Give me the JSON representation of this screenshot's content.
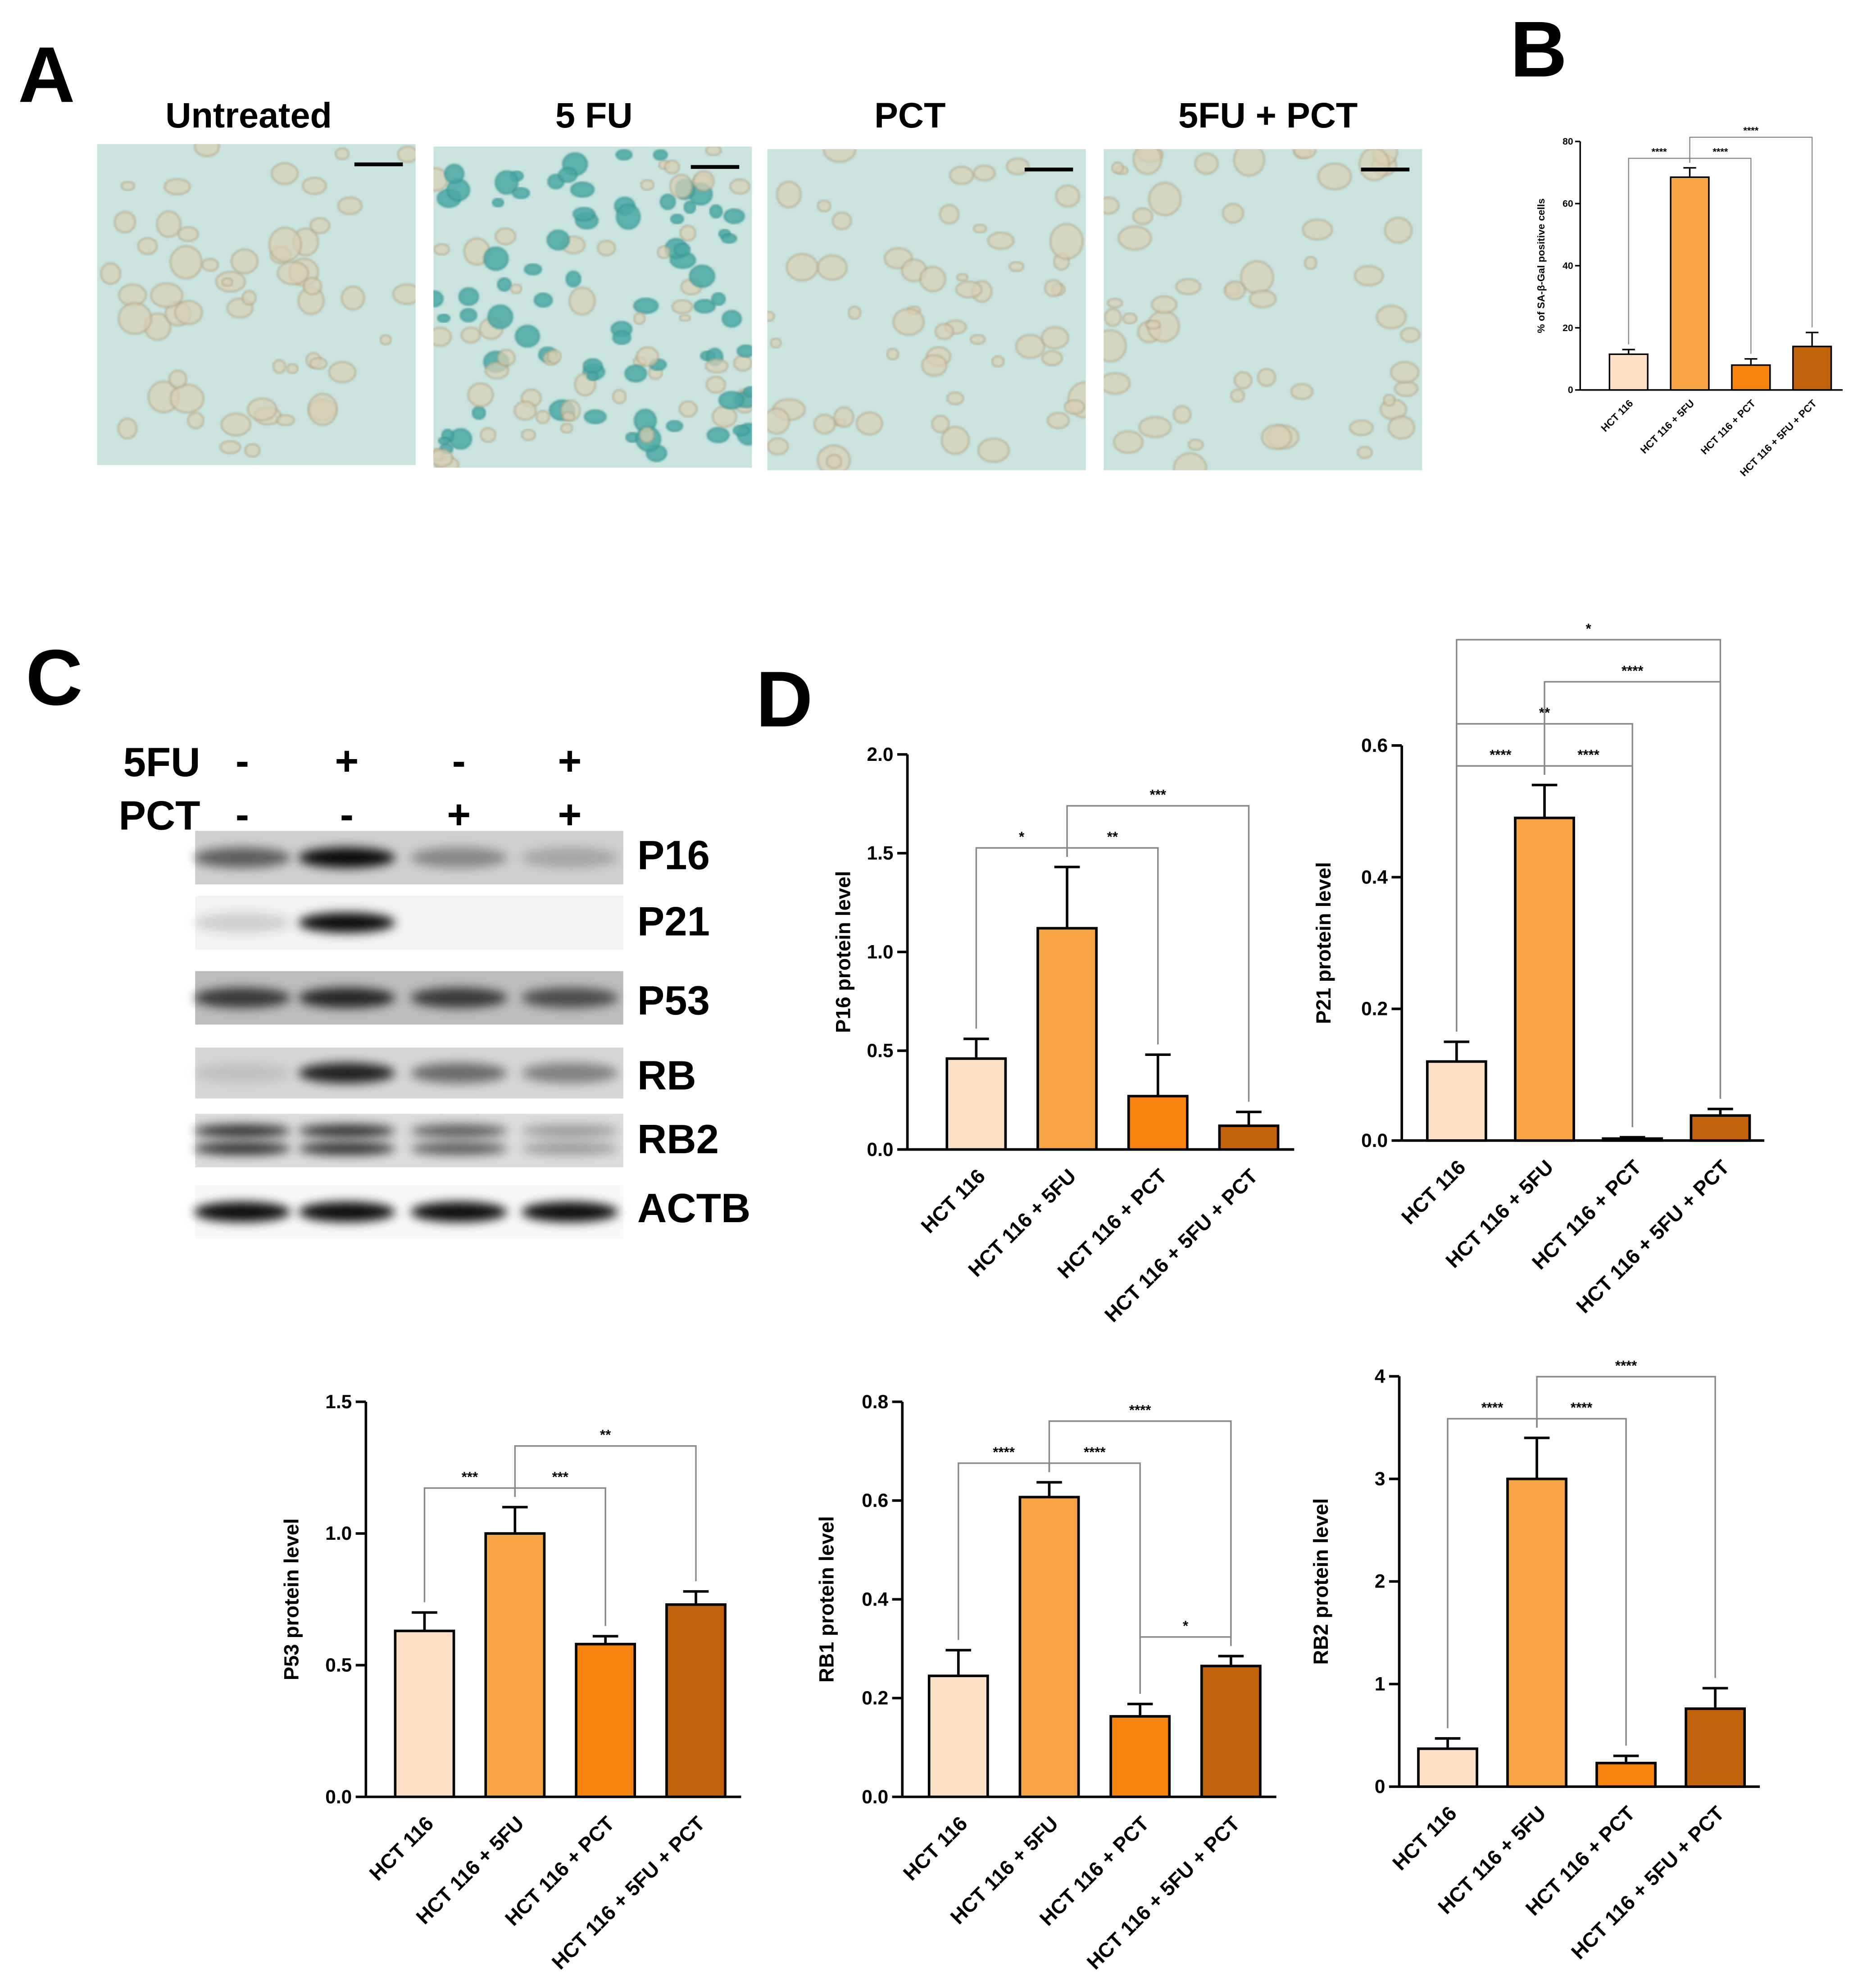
{
  "panel_labels": [
    "A",
    "B",
    "C",
    "D"
  ],
  "micrographs": {
    "titles": [
      "Untreated",
      "5 FU",
      "PCT",
      "5FU + PCT"
    ]
  },
  "blot": {
    "treatments": [
      {
        "name": "5FU",
        "signs": [
          "-",
          "+",
          "-",
          "+"
        ]
      },
      {
        "name": "PCT",
        "signs": [
          "-",
          "-",
          "+",
          "+"
        ]
      }
    ],
    "bands": [
      "P16",
      "P21",
      "P53",
      "RB",
      "RB2",
      "ACTB"
    ]
  },
  "chart_data": [
    {
      "type": "bar",
      "y_label": "% of SA-β-Gal positive cells",
      "categories": [
        "HCT 116",
        "HCT 116 + 5FU",
        "HCT 116 + PCT",
        "HCT 116 + 5FU + PCT"
      ],
      "colors": [
        "#fde0c5",
        "#f9a444",
        "#f7830f",
        "#c2620b"
      ],
      "values": [
        11.5,
        68.5,
        8,
        14
      ],
      "errors": [
        1.5,
        3,
        2,
        4.5
      ],
      "ylim": [
        0,
        80
      ],
      "yticks": [
        0,
        20,
        40,
        60,
        80
      ],
      "significance": [
        {
          "pair": [
            0,
            1
          ],
          "label": "****"
        },
        {
          "pair": [
            1,
            2
          ],
          "label": "****"
        },
        {
          "pair": [
            1,
            3
          ],
          "label": "****"
        }
      ]
    },
    {
      "type": "bar",
      "y_label": "P16 protein level",
      "categories": [
        "HCT 116",
        "HCT 116 + 5FU",
        "HCT 116 + PCT",
        "HCT 116 + 5FU + PCT"
      ],
      "colors": [
        "#fde0c5",
        "#f9a444",
        "#f7830f",
        "#c2620b"
      ],
      "values": [
        0.46,
        1.12,
        0.27,
        0.12
      ],
      "errors": [
        0.1,
        0.31,
        0.21,
        0.07
      ],
      "ylim": [
        0,
        2
      ],
      "yticks": [
        {
          "value": 0,
          "label": "0.0"
        },
        0.5,
        {
          "value": 1,
          "label": "1.0"
        },
        1.5,
        {
          "value": 2,
          "label": "2.0"
        }
      ],
      "significance": [
        {
          "pair": [
            0,
            1
          ],
          "label": "*"
        },
        {
          "pair": [
            1,
            2
          ],
          "label": "**"
        },
        {
          "pair": [
            1,
            3
          ],
          "label": "***"
        }
      ]
    },
    {
      "type": "bar",
      "y_label": "P21 protein level",
      "categories": [
        "HCT 116",
        "HCT 116 + 5FU",
        "HCT 116 + PCT",
        "HCT 116 + 5FU + PCT"
      ],
      "colors": [
        "#fde0c5",
        "#f9a444",
        "#f7830f",
        "#c2620b"
      ],
      "values": [
        0.12,
        0.49,
        0.003,
        0.038
      ],
      "errors": [
        0.03,
        0.05,
        0.002,
        0.01
      ],
      "ylim": [
        0,
        0.6
      ],
      "yticks": [
        {
          "value": 0,
          "label": "0.0"
        },
        0.2,
        0.4,
        0.6
      ],
      "significance": [
        {
          "pair": [
            0,
            1
          ],
          "label": "****"
        },
        {
          "pair": [
            1,
            2
          ],
          "label": "****"
        },
        {
          "pair": [
            0,
            2
          ],
          "label": "**"
        },
        {
          "pair": [
            1,
            3
          ],
          "label": "****"
        },
        {
          "pair": [
            0,
            3
          ],
          "label": "*"
        }
      ]
    },
    {
      "type": "bar",
      "y_label": "P53 protein level",
      "categories": [
        "HCT 116",
        "HCT 116 + 5FU",
        "HCT 116 + PCT",
        "HCT 116 + 5FU + PCT"
      ],
      "colors": [
        "#fde0c5",
        "#f9a444",
        "#f7830f",
        "#c2620b"
      ],
      "values": [
        0.63,
        1.0,
        0.58,
        0.73
      ],
      "errors": [
        0.07,
        0.1,
        0.03,
        0.05
      ],
      "ylim": [
        0,
        1.5
      ],
      "yticks": [
        {
          "value": 0,
          "label": "0.0"
        },
        0.5,
        {
          "value": 1,
          "label": "1.0"
        },
        1.5
      ],
      "significance": [
        {
          "pair": [
            0,
            1
          ],
          "label": "***"
        },
        {
          "pair": [
            1,
            2
          ],
          "label": "***"
        },
        {
          "pair": [
            1,
            3
          ],
          "label": "**"
        }
      ]
    },
    {
      "type": "bar",
      "y_label": "RB1 protein level",
      "categories": [
        "HCT 116",
        "HCT 116 + 5FU",
        "HCT 116 + PCT",
        "HCT 116 + 5FU + PCT"
      ],
      "colors": [
        "#fde0c5",
        "#f9a444",
        "#f7830f",
        "#c2620b"
      ],
      "values": [
        0.245,
        0.607,
        0.163,
        0.265
      ],
      "errors": [
        0.052,
        0.03,
        0.025,
        0.02
      ],
      "ylim": [
        0,
        0.8
      ],
      "yticks": [
        {
          "value": 0,
          "label": "0.0"
        },
        0.2,
        0.4,
        0.6,
        0.8
      ],
      "significance": [
        {
          "pair": [
            0,
            1
          ],
          "label": "****"
        },
        {
          "pair": [
            1,
            2
          ],
          "label": "****"
        },
        {
          "pair": [
            2,
            3
          ],
          "label": "*"
        },
        {
          "pair": [
            1,
            3
          ],
          "label": "****"
        }
      ]
    },
    {
      "type": "bar",
      "y_label": "RB2 protein level",
      "categories": [
        "HCT 116",
        "HCT 116 + 5FU",
        "HCT 116 + PCT",
        "HCT 116 + 5FU + PCT"
      ],
      "colors": [
        "#fde0c5",
        "#f9a444",
        "#f7830f",
        "#c2620b"
      ],
      "values": [
        0.37,
        3.0,
        0.23,
        0.76
      ],
      "errors": [
        0.1,
        0.4,
        0.07,
        0.2
      ],
      "ylim": [
        0,
        4
      ],
      "yticks": [
        0,
        1,
        2,
        3,
        4
      ],
      "significance": [
        {
          "pair": [
            0,
            1
          ],
          "label": "****"
        },
        {
          "pair": [
            1,
            2
          ],
          "label": "****"
        },
        {
          "pair": [
            1,
            3
          ],
          "label": "****"
        }
      ]
    }
  ]
}
